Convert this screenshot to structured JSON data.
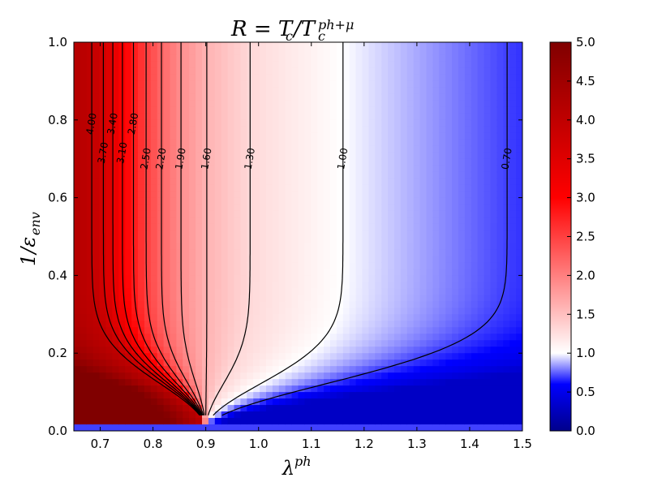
{
  "chart_data": {
    "type": "heatmap",
    "title_main": "R = T",
    "title_sub_c": "c",
    "title_slash": "/T",
    "title_sub_c2": "c",
    "title_sup": "ph+μ",
    "xlabel_main": "λ",
    "xlabel_sup": "ph",
    "ylabel_main": "1/ε",
    "ylabel_sub": "env",
    "xlim": [
      0.65,
      1.5
    ],
    "ylim": [
      0.0,
      1.0
    ],
    "x_ticks": [
      "0.7",
      "0.8",
      "0.9",
      "1.0",
      "1.1",
      "1.2",
      "1.3",
      "1.4",
      "1.5"
    ],
    "x_tick_values": [
      0.7,
      0.8,
      0.9,
      1.0,
      1.1,
      1.2,
      1.3,
      1.4,
      1.5
    ],
    "y_ticks": [
      "0.0",
      "0.2",
      "0.4",
      "0.6",
      "0.8",
      "1.0"
    ],
    "y_tick_values": [
      0.0,
      0.2,
      0.4,
      0.6,
      0.8,
      1.0
    ],
    "colorbar": {
      "min": 0.0,
      "max": 5.0,
      "center": 1.0,
      "ticks": [
        "0.0",
        "0.5",
        "1.0",
        "1.5",
        "2.0",
        "2.5",
        "3.0",
        "3.5",
        "4.0",
        "4.5",
        "5.0"
      ],
      "tick_values": [
        0.0,
        0.5,
        1.0,
        1.5,
        2.0,
        2.5,
        3.0,
        3.5,
        4.0,
        4.5,
        5.0
      ],
      "colors": {
        "low": "#00008b",
        "blue": "#0000ff",
        "white": "#ffffff",
        "red": "#ff0000",
        "high": "#800000"
      }
    },
    "contour_levels": [
      {
        "label": "4.00",
        "value": 4.0,
        "x_at_top": 0.684
      },
      {
        "label": "3.70",
        "value": 3.7,
        "x_at_top": 0.706
      },
      {
        "label": "3.40",
        "value": 3.4,
        "x_at_top": 0.724
      },
      {
        "label": "3.10",
        "value": 3.1,
        "x_at_top": 0.742
      },
      {
        "label": "2.80",
        "value": 2.8,
        "x_at_top": 0.763
      },
      {
        "label": "2.50",
        "value": 2.5,
        "x_at_top": 0.787
      },
      {
        "label": "2.20",
        "value": 2.2,
        "x_at_top": 0.816
      },
      {
        "label": "1.90",
        "value": 1.9,
        "x_at_top": 0.853
      },
      {
        "label": "1.60",
        "value": 1.6,
        "x_at_top": 0.902
      },
      {
        "label": "1.30",
        "value": 1.3,
        "x_at_top": 0.984
      },
      {
        "label": "1.00",
        "value": 1.0,
        "x_at_top": 1.16
      },
      {
        "label": "0.70",
        "value": 0.7,
        "x_at_top": 1.471
      }
    ]
  }
}
